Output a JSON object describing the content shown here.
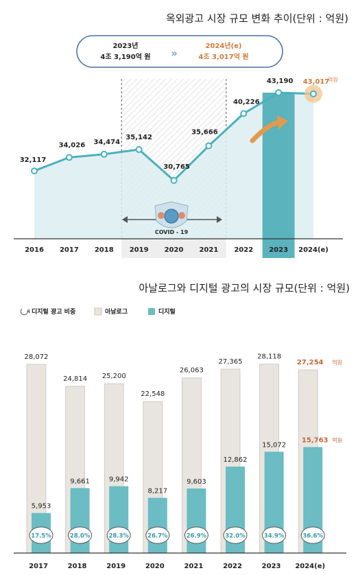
{
  "chart1": {
    "title": "옥외광고 시장 규모 변화 추이(단위 : 억원)",
    "callout": {
      "left_year": "2023년",
      "left_value": "4조 3,190억 원",
      "arrow": "»",
      "right_year": "2024년(e)",
      "right_value": "4조 3,017억 원"
    },
    "covid_label": "COVID - 19",
    "last_value_label": "43,017",
    "last_unit": "억원",
    "colors": {
      "line": "#4bb0bd",
      "area": "#dcedf0",
      "highlight_bar": "#5ab3bd",
      "accent": "#e0894a",
      "axis": "#333333"
    }
  },
  "chart2": {
    "title": "아날로그와 디지털 광고의 시장 규모(단위 : 억원)",
    "legend": {
      "share": "디지털 광고 비중",
      "analog": "아날로그",
      "digital": "디지털"
    },
    "last_unit": "억원",
    "colors": {
      "analog": "#e8e5e0",
      "analog_stroke": "#c9c5be",
      "digital": "#6bbcc3",
      "accent": "#c1683a"
    }
  },
  "chart_data": [
    {
      "type": "line",
      "title": "옥외광고 시장 규모 변화 추이(단위 : 억원)",
      "categories": [
        "2016",
        "2017",
        "2018",
        "2019",
        "2020",
        "2021",
        "2022",
        "2023",
        "2024(e)"
      ],
      "series": [
        {
          "values": [
            32117,
            34026,
            34474,
            35142,
            30765,
            35666,
            40226,
            43190,
            43017
          ]
        }
      ],
      "value_labels": [
        "32,117",
        "34,026",
        "34,474",
        "35,142",
        "30,765",
        "35,666",
        "40,226",
        "43,190",
        "43,017"
      ],
      "highlight_category": "2023",
      "shaded_categories": [
        "2019",
        "2020",
        "2021"
      ]
    },
    {
      "type": "bar",
      "title": "아날로그와 디지털 광고의 시장 규모(단위 : 억원)",
      "categories": [
        "2017",
        "2018",
        "2019",
        "2020",
        "2021",
        "2022",
        "2023",
        "2024(e)"
      ],
      "series": [
        {
          "name": "아날로그",
          "values": [
            28072,
            24814,
            25200,
            22548,
            26063,
            27365,
            28118,
            27254
          ],
          "labels": [
            "28,072",
            "24,814",
            "25,200",
            "22,548",
            "26,063",
            "27,365",
            "28,118",
            "27,254"
          ]
        },
        {
          "name": "디지털",
          "values": [
            5953,
            9661,
            9942,
            8217,
            9603,
            12862,
            15072,
            15763
          ],
          "labels": [
            "5,953",
            "9,661",
            "9,942",
            "8,217",
            "9,603",
            "12,862",
            "15,072",
            "15,763"
          ]
        },
        {
          "name": "디지털 광고 비중",
          "values": [
            17.5,
            28.0,
            28.3,
            26.7,
            26.9,
            32.0,
            34.9,
            36.6
          ],
          "labels": [
            "17.5%",
            "28.0%",
            "28.3%",
            "26.7%",
            "26.9%",
            "32.0%",
            "34.9%",
            "36.6%"
          ]
        }
      ]
    }
  ]
}
